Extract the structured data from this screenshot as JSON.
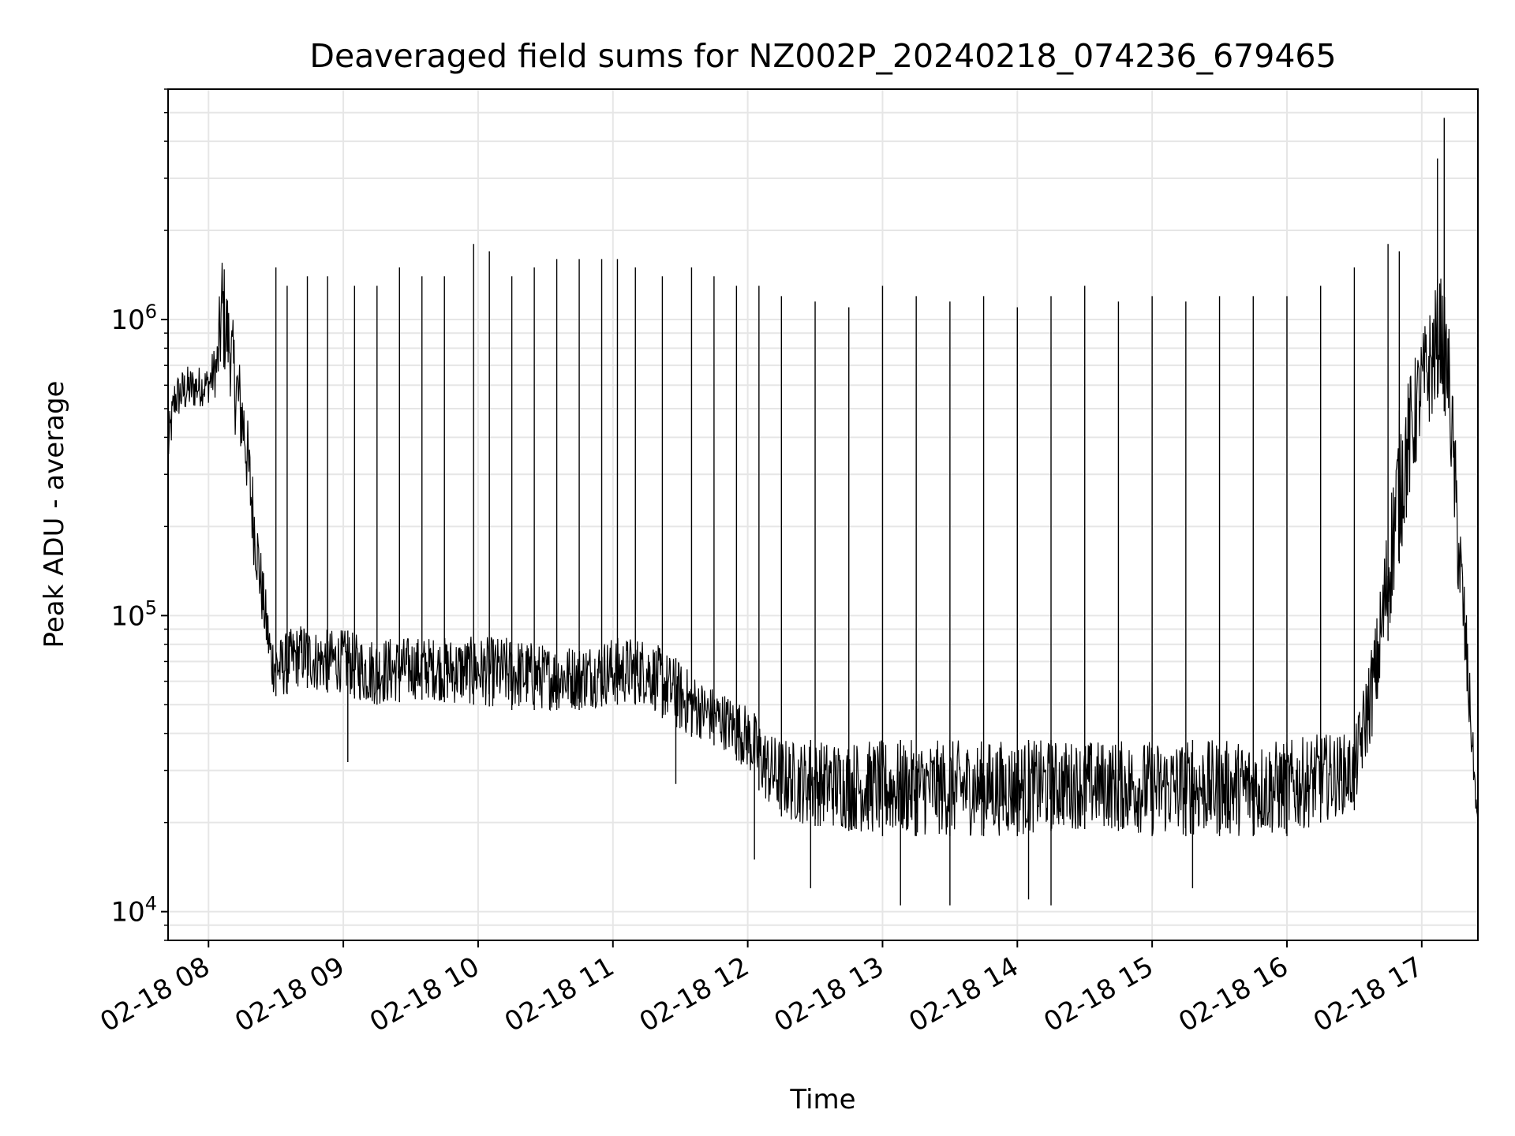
{
  "chart_data": {
    "type": "line",
    "title": "Deaveraged field sums for NZ002P_20240218_074236_679465",
    "xlabel": "Time",
    "ylabel": "Peak ADU - average",
    "yscale": "log",
    "grid": true,
    "xlim": [
      "2024-02-18 07:42",
      "2024-02-18 17:25"
    ],
    "ylim": [
      8000,
      6000000
    ],
    "xticks": [
      {
        "label": "02-18 08",
        "value": "2024-02-18 08:00"
      },
      {
        "label": "02-18 09",
        "value": "2024-02-18 09:00"
      },
      {
        "label": "02-18 10",
        "value": "2024-02-18 10:00"
      },
      {
        "label": "02-18 11",
        "value": "2024-02-18 11:00"
      },
      {
        "label": "02-18 12",
        "value": "2024-02-18 12:00"
      },
      {
        "label": "02-18 13",
        "value": "2024-02-18 13:00"
      },
      {
        "label": "02-18 14",
        "value": "2024-02-18 14:00"
      },
      {
        "label": "02-18 15",
        "value": "2024-02-18 15:00"
      },
      {
        "label": "02-18 16",
        "value": "2024-02-18 16:00"
      },
      {
        "label": "02-18 17",
        "value": "2024-02-18 17:00"
      }
    ],
    "yticks": [
      {
        "base": "10",
        "exp": "4",
        "value": 10000
      },
      {
        "base": "10",
        "exp": "5",
        "value": 100000
      },
      {
        "base": "10",
        "exp": "6",
        "value": 1000000
      }
    ],
    "series": [
      {
        "color": "#000000",
        "x": [
          "2024-02-18 07:42",
          "2024-02-18 07:45",
          "2024-02-18 07:50",
          "2024-02-18 07:55",
          "2024-02-18 08:00",
          "2024-02-18 08:04",
          "2024-02-18 08:06",
          "2024-02-18 08:09",
          "2024-02-18 08:12",
          "2024-02-18 08:16",
          "2024-02-18 08:20",
          "2024-02-18 08:24",
          "2024-02-18 08:28",
          "2024-02-18 08:32",
          "2024-02-18 08:36",
          "2024-02-18 08:42",
          "2024-02-18 08:48",
          "2024-02-18 08:54",
          "2024-02-18 09:00",
          "2024-02-18 09:10",
          "2024-02-18 09:20",
          "2024-02-18 09:30",
          "2024-02-18 09:40",
          "2024-02-18 09:50",
          "2024-02-18 10:00",
          "2024-02-18 10:15",
          "2024-02-18 10:30",
          "2024-02-18 10:45",
          "2024-02-18 11:00",
          "2024-02-18 11:15",
          "2024-02-18 11:30",
          "2024-02-18 11:40",
          "2024-02-18 11:50",
          "2024-02-18 12:00",
          "2024-02-18 12:10",
          "2024-02-18 12:20",
          "2024-02-18 12:40",
          "2024-02-18 13:00",
          "2024-02-18 13:20",
          "2024-02-18 13:40",
          "2024-02-18 14:00",
          "2024-02-18 14:20",
          "2024-02-18 14:40",
          "2024-02-18 15:00",
          "2024-02-18 15:20",
          "2024-02-18 15:40",
          "2024-02-18 16:00",
          "2024-02-18 16:15",
          "2024-02-18 16:30",
          "2024-02-18 16:40",
          "2024-02-18 16:50",
          "2024-02-18 17:00",
          "2024-02-18 17:05",
          "2024-02-18 17:08",
          "2024-02-18 17:12",
          "2024-02-18 17:16",
          "2024-02-18 17:20",
          "2024-02-18 17:25"
        ],
        "lower": [
          300000,
          450000,
          480000,
          500000,
          520000,
          550000,
          650000,
          600000,
          400000,
          300000,
          150000,
          90000,
          55000,
          52000,
          55000,
          58000,
          55000,
          55000,
          55000,
          50000,
          50000,
          52000,
          52000,
          50000,
          50000,
          48000,
          48000,
          48000,
          50000,
          50000,
          40000,
          38000,
          35000,
          30000,
          22000,
          20000,
          19000,
          18000,
          18000,
          18000,
          18000,
          19000,
          19000,
          18000,
          18000,
          18000,
          18000,
          20000,
          22000,
          45000,
          150000,
          400000,
          450000,
          600000,
          400000,
          120000,
          50000,
          18000
        ],
        "upper": [
          450000,
          650000,
          700000,
          700000,
          700000,
          900000,
          1800000,
          1200000,
          900000,
          600000,
          300000,
          150000,
          90000,
          85000,
          90000,
          95000,
          90000,
          90000,
          90000,
          85000,
          85000,
          85000,
          85000,
          85000,
          85000,
          85000,
          80000,
          80000,
          85000,
          85000,
          70000,
          60000,
          55000,
          50000,
          40000,
          38000,
          38000,
          38000,
          38000,
          38000,
          38000,
          38000,
          38000,
          38000,
          38000,
          38000,
          38000,
          40000,
          40000,
          100000,
          500000,
          900000,
          1200000,
          1500000,
          1000000,
          300000,
          100000,
          20000
        ],
        "spikes": [
          {
            "x": "2024-02-18 08:30",
            "y": 1500000
          },
          {
            "x": "2024-02-18 08:35",
            "y": 1300000
          },
          {
            "x": "2024-02-18 08:44",
            "y": 1400000
          },
          {
            "x": "2024-02-18 08:53",
            "y": 1400000
          },
          {
            "x": "2024-02-18 09:05",
            "y": 1300000
          },
          {
            "x": "2024-02-18 09:15",
            "y": 1300000
          },
          {
            "x": "2024-02-18 09:25",
            "y": 1500000
          },
          {
            "x": "2024-02-18 09:35",
            "y": 1400000
          },
          {
            "x": "2024-02-18 09:45",
            "y": 1400000
          },
          {
            "x": "2024-02-18 09:58",
            "y": 1800000
          },
          {
            "x": "2024-02-18 10:05",
            "y": 1700000
          },
          {
            "x": "2024-02-18 10:15",
            "y": 1400000
          },
          {
            "x": "2024-02-18 10:25",
            "y": 1500000
          },
          {
            "x": "2024-02-18 10:35",
            "y": 1600000
          },
          {
            "x": "2024-02-18 10:45",
            "y": 1600000
          },
          {
            "x": "2024-02-18 10:55",
            "y": 1600000
          },
          {
            "x": "2024-02-18 11:02",
            "y": 1600000
          },
          {
            "x": "2024-02-18 11:10",
            "y": 1500000
          },
          {
            "x": "2024-02-18 11:22",
            "y": 1400000
          },
          {
            "x": "2024-02-18 11:35",
            "y": 1500000
          },
          {
            "x": "2024-02-18 11:45",
            "y": 1400000
          },
          {
            "x": "2024-02-18 11:55",
            "y": 1300000
          },
          {
            "x": "2024-02-18 12:05",
            "y": 1300000
          },
          {
            "x": "2024-02-18 12:15",
            "y": 1200000
          },
          {
            "x": "2024-02-18 12:30",
            "y": 1150000
          },
          {
            "x": "2024-02-18 12:45",
            "y": 1100000
          },
          {
            "x": "2024-02-18 13:00",
            "y": 1300000
          },
          {
            "x": "2024-02-18 13:15",
            "y": 1200000
          },
          {
            "x": "2024-02-18 13:30",
            "y": 1150000
          },
          {
            "x": "2024-02-18 13:45",
            "y": 1200000
          },
          {
            "x": "2024-02-18 14:00",
            "y": 1100000
          },
          {
            "x": "2024-02-18 14:15",
            "y": 1200000
          },
          {
            "x": "2024-02-18 14:30",
            "y": 1300000
          },
          {
            "x": "2024-02-18 14:45",
            "y": 1150000
          },
          {
            "x": "2024-02-18 15:00",
            "y": 1200000
          },
          {
            "x": "2024-02-18 15:15",
            "y": 1150000
          },
          {
            "x": "2024-02-18 15:30",
            "y": 1200000
          },
          {
            "x": "2024-02-18 15:45",
            "y": 1200000
          },
          {
            "x": "2024-02-18 16:00",
            "y": 1200000
          },
          {
            "x": "2024-02-18 16:15",
            "y": 1300000
          },
          {
            "x": "2024-02-18 16:30",
            "y": 1500000
          },
          {
            "x": "2024-02-18 16:45",
            "y": 1800000
          },
          {
            "x": "2024-02-18 16:50",
            "y": 1700000
          },
          {
            "x": "2024-02-18 17:07",
            "y": 3500000
          },
          {
            "x": "2024-02-18 17:10",
            "y": 4800000
          }
        ],
        "dips": [
          {
            "x": "2024-02-18 09:02",
            "y": 32000
          },
          {
            "x": "2024-02-18 11:28",
            "y": 27000
          },
          {
            "x": "2024-02-18 12:03",
            "y": 15000
          },
          {
            "x": "2024-02-18 12:28",
            "y": 12000
          },
          {
            "x": "2024-02-18 13:08",
            "y": 10500
          },
          {
            "x": "2024-02-18 13:30",
            "y": 10500
          },
          {
            "x": "2024-02-18 14:05",
            "y": 11000
          },
          {
            "x": "2024-02-18 14:15",
            "y": 10500
          },
          {
            "x": "2024-02-18 15:18",
            "y": 12000
          }
        ]
      }
    ]
  }
}
